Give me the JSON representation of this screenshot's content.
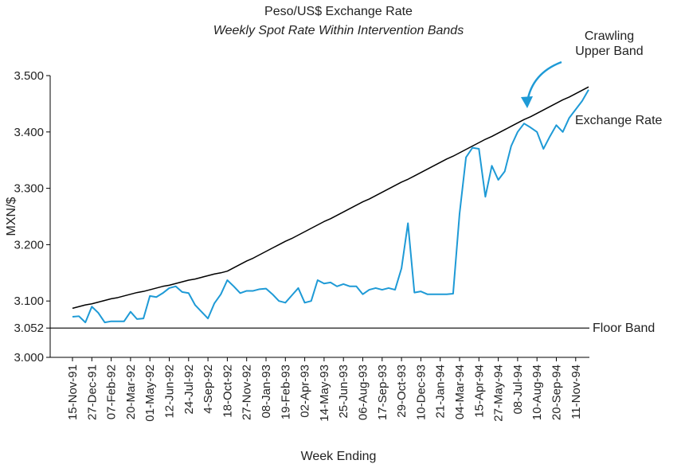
{
  "chart_data": {
    "type": "line",
    "title": "Peso/US$ Exchange Rate",
    "subtitle": "Weekly Spot Rate Within Intervention Bands",
    "x_label": "Week Ending",
    "y_label": "MXN/$",
    "categories": [
      "15-Nov-91",
      null,
      null,
      "27-Dec-91",
      null,
      null,
      "07-Feb-92",
      null,
      null,
      "20-Mar-92",
      null,
      null,
      "01-May-92",
      null,
      null,
      "12-Jun-92",
      null,
      null,
      "24-Jul-92",
      null,
      null,
      "4-Sep-92",
      null,
      null,
      "18-Oct-92",
      null,
      null,
      "27-Nov-92",
      null,
      null,
      "08-Jan-93",
      null,
      null,
      "19-Feb-93",
      null,
      null,
      "02-Apr-93",
      null,
      null,
      "14-May-93",
      null,
      null,
      "25-Jun-93",
      null,
      null,
      "06-Aug-93",
      null,
      null,
      "17-Sep-93",
      null,
      null,
      "29-Oct-93",
      null,
      null,
      "10-Dec-93",
      null,
      null,
      "21-Jan-94",
      null,
      null,
      "04-Mar-94",
      null,
      null,
      "15-Apr-94",
      null,
      null,
      "27-May-94",
      null,
      null,
      "08-Jul-94",
      null,
      null,
      "10-Aug-94",
      null,
      null,
      "20-Sep-94",
      null,
      null,
      "11-Nov-94",
      null,
      null
    ],
    "series": [
      {
        "name": "Exchange Rate",
        "color": "#1e9ad6",
        "values": [
          3.072,
          3.073,
          3.062,
          3.09,
          3.079,
          3.062,
          3.064,
          3.064,
          3.064,
          3.081,
          3.068,
          3.069,
          3.109,
          3.107,
          3.114,
          3.123,
          3.126,
          3.116,
          3.114,
          3.093,
          3.081,
          3.069,
          3.096,
          3.112,
          3.137,
          3.126,
          3.114,
          3.118,
          3.118,
          3.121,
          3.122,
          3.112,
          3.1,
          3.097,
          3.11,
          3.123,
          3.097,
          3.1,
          3.137,
          3.131,
          3.133,
          3.126,
          3.13,
          3.126,
          3.126,
          3.112,
          3.12,
          3.123,
          3.12,
          3.123,
          3.12,
          3.158,
          3.238,
          3.115,
          3.117,
          3.112,
          3.112,
          3.112,
          3.112,
          3.113,
          3.255,
          3.355,
          3.372,
          3.37,
          3.285,
          3.34,
          3.315,
          3.33,
          3.375,
          3.4,
          3.415,
          3.408,
          3.4,
          3.37,
          3.392,
          3.412,
          3.4,
          3.425,
          3.44,
          3.455,
          3.475
        ]
      },
      {
        "name": "Crawling Upper Band",
        "color": "#000000",
        "values": [
          3.087,
          3.09,
          3.093,
          3.095,
          3.098,
          3.101,
          3.104,
          3.106,
          3.109,
          3.112,
          3.115,
          3.117,
          3.12,
          3.123,
          3.126,
          3.128,
          3.131,
          3.134,
          3.137,
          3.139,
          3.142,
          3.145,
          3.148,
          3.15,
          3.153,
          3.159,
          3.165,
          3.171,
          3.176,
          3.182,
          3.188,
          3.194,
          3.2,
          3.206,
          3.211,
          3.217,
          3.223,
          3.229,
          3.235,
          3.241,
          3.246,
          3.252,
          3.258,
          3.264,
          3.27,
          3.276,
          3.281,
          3.287,
          3.293,
          3.299,
          3.305,
          3.311,
          3.316,
          3.322,
          3.328,
          3.334,
          3.34,
          3.346,
          3.352,
          3.357,
          3.363,
          3.369,
          3.375,
          3.381,
          3.387,
          3.392,
          3.398,
          3.404,
          3.41,
          3.416,
          3.422,
          3.427,
          3.433,
          3.439,
          3.445,
          3.451,
          3.457,
          3.462,
          3.468,
          3.474,
          3.48
        ]
      }
    ],
    "hlines": [
      {
        "value": 3.052,
        "label": "Floor Band",
        "color": "#000000"
      }
    ],
    "ylim": [
      3.0,
      3.5
    ],
    "yticks": [
      {
        "value": 3.0,
        "label": "3.000"
      },
      {
        "value": 3.052,
        "label": "3.052"
      },
      {
        "value": 3.1,
        "label": "3.100"
      },
      {
        "value": 3.2,
        "label": "3.200"
      },
      {
        "value": 3.3,
        "label": "3.300"
      },
      {
        "value": 3.4,
        "label": "3.400"
      },
      {
        "value": 3.5,
        "label": "3.500"
      }
    ],
    "grid": false
  }
}
